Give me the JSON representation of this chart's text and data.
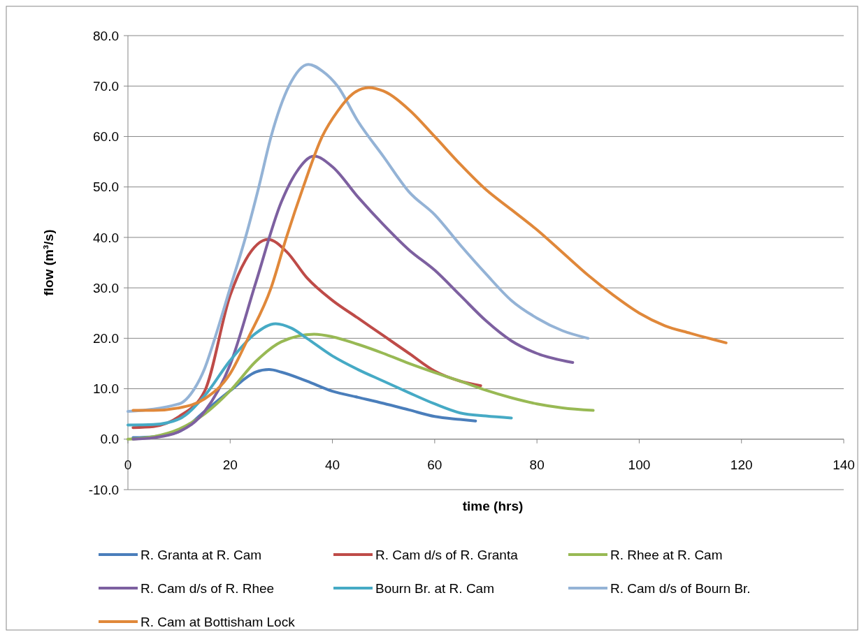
{
  "chart_data": {
    "type": "line",
    "xlabel": "time (hrs)",
    "ylabel": "flow (m³/s)",
    "xlim": [
      0,
      140
    ],
    "xticks": [
      0,
      20,
      40,
      60,
      80,
      100,
      120,
      140
    ],
    "ylim": [
      -10,
      80
    ],
    "yticks": [
      {
        "value": -10,
        "label": "-10.0"
      },
      {
        "value": 0,
        "label": "0.0"
      },
      {
        "value": 10,
        "label": "10.0"
      },
      {
        "value": 20,
        "label": "20.0"
      },
      {
        "value": 30,
        "label": "30.0"
      },
      {
        "value": 40,
        "label": "40.0"
      },
      {
        "value": 50,
        "label": "50.0"
      },
      {
        "value": 60,
        "label": "60.0"
      },
      {
        "value": 70,
        "label": "70.0"
      },
      {
        "value": 80,
        "label": "80.0"
      }
    ],
    "grid": "y",
    "legend": "bottom",
    "marker": "none",
    "line_style": "solid",
    "series": [
      {
        "name": "R. Granta at R. Cam",
        "color": "#4a7ebb",
        "x": [
          1,
          5,
          10,
          15,
          20,
          25,
          27.6,
          30,
          35,
          40,
          45,
          50,
          55,
          60,
          65,
          68
        ],
        "values": [
          0.3,
          0.5,
          1.5,
          5.5,
          9.6,
          13.3,
          13.8,
          13.3,
          11.5,
          9.5,
          8.3,
          7.1,
          5.8,
          4.5,
          3.9,
          3.6
        ]
      },
      {
        "name": "R. Cam d/s of R. Granta",
        "color": "#be4b48",
        "x": [
          1,
          5,
          10,
          15,
          20,
          23,
          27.4,
          31,
          35,
          40,
          45,
          50,
          55,
          60,
          65,
          69
        ],
        "values": [
          2.3,
          2.5,
          4.5,
          9.5,
          28.5,
          35.5,
          39.6,
          37.2,
          32,
          27.5,
          24,
          20.5,
          17,
          13.5,
          11.5,
          10.6
        ]
      },
      {
        "name": "R. Rhee at R. Cam",
        "color": "#98b954",
        "x": [
          0,
          5,
          10,
          15,
          20,
          25,
          30,
          36.4,
          40,
          45,
          50,
          55,
          60,
          65,
          70,
          75,
          80,
          85,
          91
        ],
        "values": [
          0,
          0.5,
          2,
          5,
          9.6,
          15.4,
          19.3,
          20.8,
          20.3,
          18.8,
          17,
          15,
          13.2,
          11.5,
          9.7,
          8.2,
          7,
          6.2,
          5.7
        ]
      },
      {
        "name": "R. Cam d/s of R. Rhee",
        "color": "#7d60a0",
        "x": [
          1,
          5,
          10,
          15,
          20,
          25,
          30,
          33,
          36.4,
          40,
          45,
          50,
          55,
          60,
          65,
          70,
          75,
          80,
          87
        ],
        "values": [
          0,
          0.3,
          1.5,
          5.5,
          14.8,
          31,
          47,
          53,
          56.1,
          54,
          48,
          42.5,
          37.5,
          33.5,
          28.5,
          23.5,
          19.5,
          17,
          15.2
        ]
      },
      {
        "name": "Bourn Br. at R. Cam",
        "color": "#46aac5",
        "x": [
          0,
          5,
          10,
          15,
          20,
          25,
          28.9,
          32,
          35,
          40,
          45,
          50,
          55,
          60,
          65,
          70,
          75
        ],
        "values": [
          2.8,
          2.9,
          4,
          8.6,
          15.6,
          21,
          22.9,
          22,
          20,
          16.5,
          13.8,
          11.5,
          9.2,
          7,
          5.2,
          4.6,
          4.2
        ]
      },
      {
        "name": "R. Cam d/s of Bourn Br.",
        "color": "#94b3d6",
        "x": [
          0,
          10,
          13,
          15,
          17,
          20,
          23,
          25.6,
          28,
          31.5,
          35.3,
          38,
          41,
          45,
          50,
          55,
          60,
          65,
          70,
          75,
          80,
          85,
          90
        ],
        "values": [
          5.5,
          7,
          10,
          14,
          20,
          30,
          40,
          50,
          60,
          70,
          74.3,
          73,
          70,
          63,
          56,
          49,
          44.5,
          38.5,
          32.8,
          27.5,
          24,
          21.5,
          20
        ]
      },
      {
        "name": "R. Cam at Bottisham Lock",
        "color": "#e0883a",
        "x": [
          1,
          5,
          10,
          15,
          20,
          23.5,
          28,
          31,
          34.3,
          38,
          41,
          44,
          47.1,
          50,
          55,
          60,
          65,
          70,
          75,
          80,
          85,
          90,
          95,
          100,
          105,
          110,
          117
        ],
        "values": [
          5.7,
          5.7,
          6.2,
          8,
          13,
          20,
          30,
          40,
          50,
          60,
          65,
          68.5,
          69.7,
          69,
          65.3,
          60,
          54.5,
          49.5,
          45.5,
          41.5,
          37,
          32.5,
          28.5,
          25,
          22.5,
          21,
          19.1
        ]
      }
    ]
  }
}
